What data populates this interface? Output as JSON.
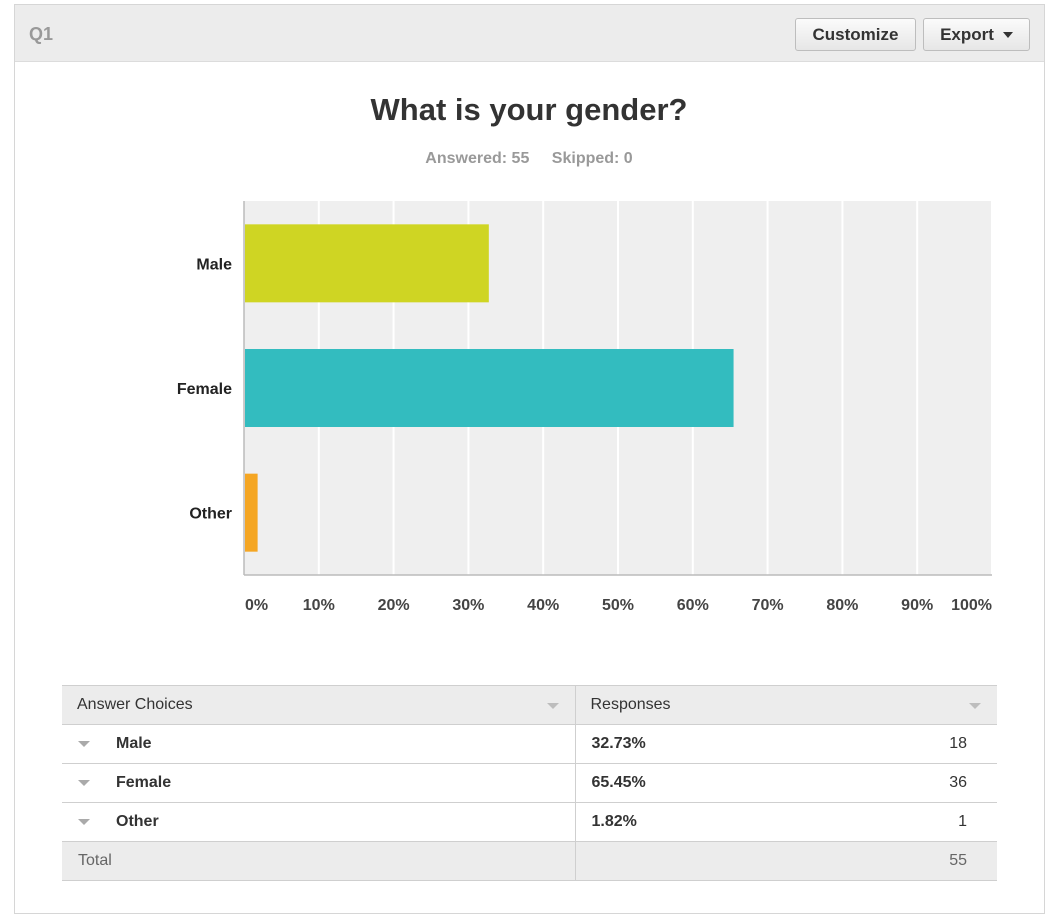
{
  "header": {
    "question_id": "Q1",
    "customize_label": "Customize",
    "export_label": "Export"
  },
  "question": {
    "title": "What is your gender?",
    "answered": "Answered: 55",
    "skipped": "Skipped: 0"
  },
  "colors": {
    "Male": "#cfd523",
    "Female": "#33bcbf",
    "Other": "#f5a623",
    "plot_bg": "#efefef",
    "grid": "#ffffff"
  },
  "chart_data": {
    "type": "bar",
    "orientation": "horizontal",
    "categories": [
      "Male",
      "Female",
      "Other"
    ],
    "values": [
      32.73,
      65.45,
      1.82
    ],
    "xlim": [
      0,
      100
    ],
    "ticks": [
      0,
      10,
      20,
      30,
      40,
      50,
      60,
      70,
      80,
      90,
      100
    ],
    "tick_labels": [
      "0%",
      "10%",
      "20%",
      "30%",
      "40%",
      "50%",
      "60%",
      "70%",
      "80%",
      "90%",
      "100%"
    ],
    "grid": true,
    "legend": "none"
  },
  "table": {
    "headers": [
      "Answer Choices",
      "Responses"
    ],
    "rows": [
      {
        "choice": "Male",
        "percent": "32.73%",
        "count": "18"
      },
      {
        "choice": "Female",
        "percent": "65.45%",
        "count": "36"
      },
      {
        "choice": "Other",
        "percent": "1.82%",
        "count": "1"
      }
    ],
    "total_label": "Total",
    "total_count": "55"
  }
}
